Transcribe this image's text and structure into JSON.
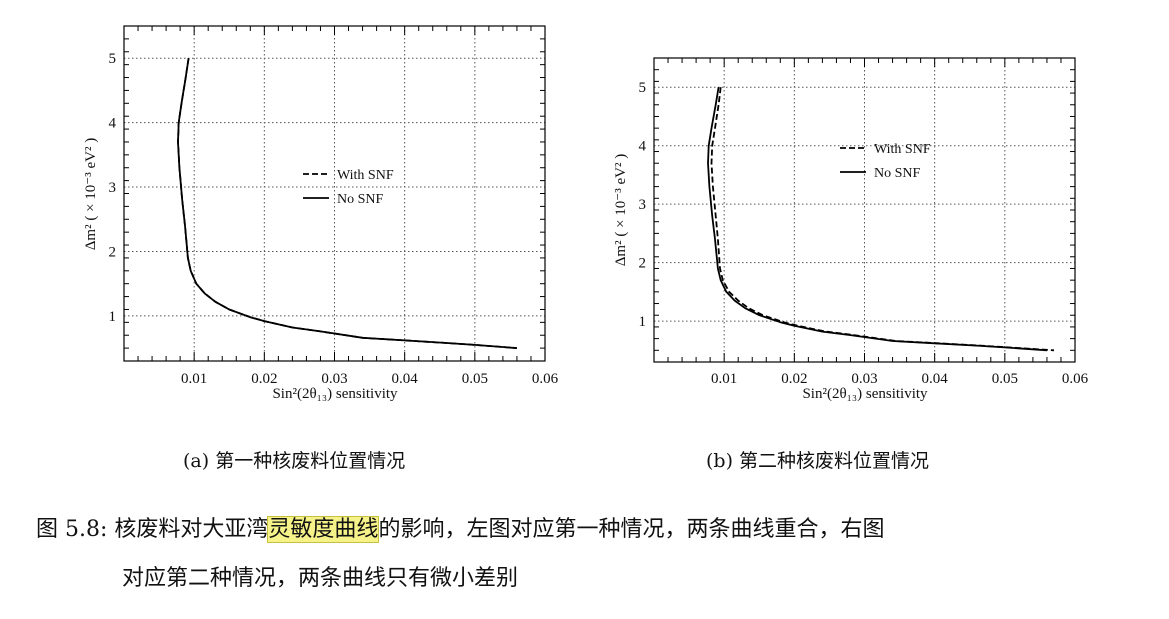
{
  "chart_data": [
    {
      "type": "line",
      "xlabel": "Sin²(2θ₁₃) sensitivity",
      "ylabel": "Δm² ( × 10⁻³ eV² )",
      "xlim": [
        0.0,
        0.06
      ],
      "ylim": [
        0.3,
        5.5
      ],
      "xticks": [
        "0.01",
        "0.02",
        "0.03",
        "0.04",
        "0.05",
        "0.06"
      ],
      "yticks": [
        "1",
        "2",
        "3",
        "4",
        "5"
      ],
      "grid": true,
      "legend_position": "center-right",
      "series": [
        {
          "name": "With SNF",
          "style": "dashed",
          "points": [
            [
              0.0092,
              5.0
            ],
            [
              0.0088,
              4.7
            ],
            [
              0.0082,
              4.3
            ],
            [
              0.0078,
              4.0
            ],
            [
              0.0077,
              3.7
            ],
            [
              0.0079,
              3.3
            ],
            [
              0.0083,
              2.8
            ],
            [
              0.0087,
              2.4
            ],
            [
              0.0091,
              1.9
            ],
            [
              0.0095,
              1.7
            ],
            [
              0.0103,
              1.5
            ],
            [
              0.0115,
              1.35
            ],
            [
              0.013,
              1.22
            ],
            [
              0.015,
              1.1
            ],
            [
              0.018,
              0.98
            ],
            [
              0.02,
              0.92
            ],
            [
              0.024,
              0.82
            ],
            [
              0.028,
              0.76
            ],
            [
              0.034,
              0.66
            ],
            [
              0.04,
              0.62
            ],
            [
              0.046,
              0.58
            ],
            [
              0.05,
              0.55
            ],
            [
              0.056,
              0.5
            ]
          ]
        },
        {
          "name": "No SNF",
          "style": "solid",
          "points": [
            [
              0.0092,
              5.0
            ],
            [
              0.0088,
              4.7
            ],
            [
              0.0082,
              4.3
            ],
            [
              0.0078,
              4.0
            ],
            [
              0.0077,
              3.7
            ],
            [
              0.0079,
              3.3
            ],
            [
              0.0083,
              2.8
            ],
            [
              0.0087,
              2.4
            ],
            [
              0.0091,
              1.9
            ],
            [
              0.0095,
              1.7
            ],
            [
              0.0103,
              1.5
            ],
            [
              0.0115,
              1.35
            ],
            [
              0.013,
              1.22
            ],
            [
              0.015,
              1.1
            ],
            [
              0.018,
              0.98
            ],
            [
              0.02,
              0.92
            ],
            [
              0.024,
              0.82
            ],
            [
              0.028,
              0.76
            ],
            [
              0.034,
              0.66
            ],
            [
              0.04,
              0.62
            ],
            [
              0.046,
              0.58
            ],
            [
              0.05,
              0.55
            ],
            [
              0.056,
              0.5
            ]
          ]
        }
      ]
    },
    {
      "type": "line",
      "xlabel": "Sin²(2θ₁₃) sensitivity",
      "ylabel": "Δm² ( × 10⁻³ eV² )",
      "xlim": [
        0.0,
        0.06
      ],
      "ylim": [
        0.3,
        5.5
      ],
      "xticks": [
        "0.01",
        "0.02",
        "0.03",
        "0.04",
        "0.05",
        "0.06"
      ],
      "yticks": [
        "1",
        "2",
        "3",
        "4",
        "5"
      ],
      "grid": true,
      "legend_position": "top-right",
      "series": [
        {
          "name": "With SNF",
          "style": "dashed",
          "points": [
            [
              0.0095,
              5.0
            ],
            [
              0.0092,
              4.7
            ],
            [
              0.0087,
              4.3
            ],
            [
              0.0083,
              4.0
            ],
            [
              0.0082,
              3.7
            ],
            [
              0.0084,
              3.3
            ],
            [
              0.0088,
              2.8
            ],
            [
              0.0091,
              2.4
            ],
            [
              0.0094,
              1.9
            ],
            [
              0.0098,
              1.7
            ],
            [
              0.0107,
              1.5
            ],
            [
              0.012,
              1.35
            ],
            [
              0.0135,
              1.22
            ],
            [
              0.0155,
              1.1
            ],
            [
              0.0185,
              0.98
            ],
            [
              0.0205,
              0.92
            ],
            [
              0.0245,
              0.82
            ],
            [
              0.0285,
              0.76
            ],
            [
              0.0345,
              0.66
            ],
            [
              0.0405,
              0.62
            ],
            [
              0.0465,
              0.58
            ],
            [
              0.0505,
              0.55
            ],
            [
              0.057,
              0.5
            ]
          ]
        },
        {
          "name": "No SNF",
          "style": "solid",
          "points": [
            [
              0.0092,
              5.0
            ],
            [
              0.0088,
              4.7
            ],
            [
              0.0082,
              4.3
            ],
            [
              0.0078,
              4.0
            ],
            [
              0.0077,
              3.7
            ],
            [
              0.0079,
              3.3
            ],
            [
              0.0083,
              2.8
            ],
            [
              0.0087,
              2.4
            ],
            [
              0.0091,
              1.9
            ],
            [
              0.0095,
              1.7
            ],
            [
              0.0103,
              1.5
            ],
            [
              0.0115,
              1.35
            ],
            [
              0.013,
              1.22
            ],
            [
              0.015,
              1.1
            ],
            [
              0.018,
              0.98
            ],
            [
              0.02,
              0.92
            ],
            [
              0.024,
              0.82
            ],
            [
              0.028,
              0.76
            ],
            [
              0.034,
              0.66
            ],
            [
              0.04,
              0.62
            ],
            [
              0.046,
              0.58
            ],
            [
              0.05,
              0.55
            ],
            [
              0.056,
              0.5
            ]
          ]
        }
      ]
    }
  ],
  "subcaptions": [
    "(a) 第一种核废料位置情况",
    "(b) 第二种核废料位置情况"
  ],
  "figure_caption": {
    "label": "图 5.8:",
    "before_highlight": "核废料对大亚湾",
    "highlight": "灵敏度曲线",
    "after_highlight": "的影响，左图对应第一种情况，两条曲线重合，右图",
    "line2": "对应第二种情况，两条曲线只有微小差别"
  },
  "colors": {
    "line": "#000000",
    "grid": "#555555",
    "highlight": "#f6f28a"
  }
}
